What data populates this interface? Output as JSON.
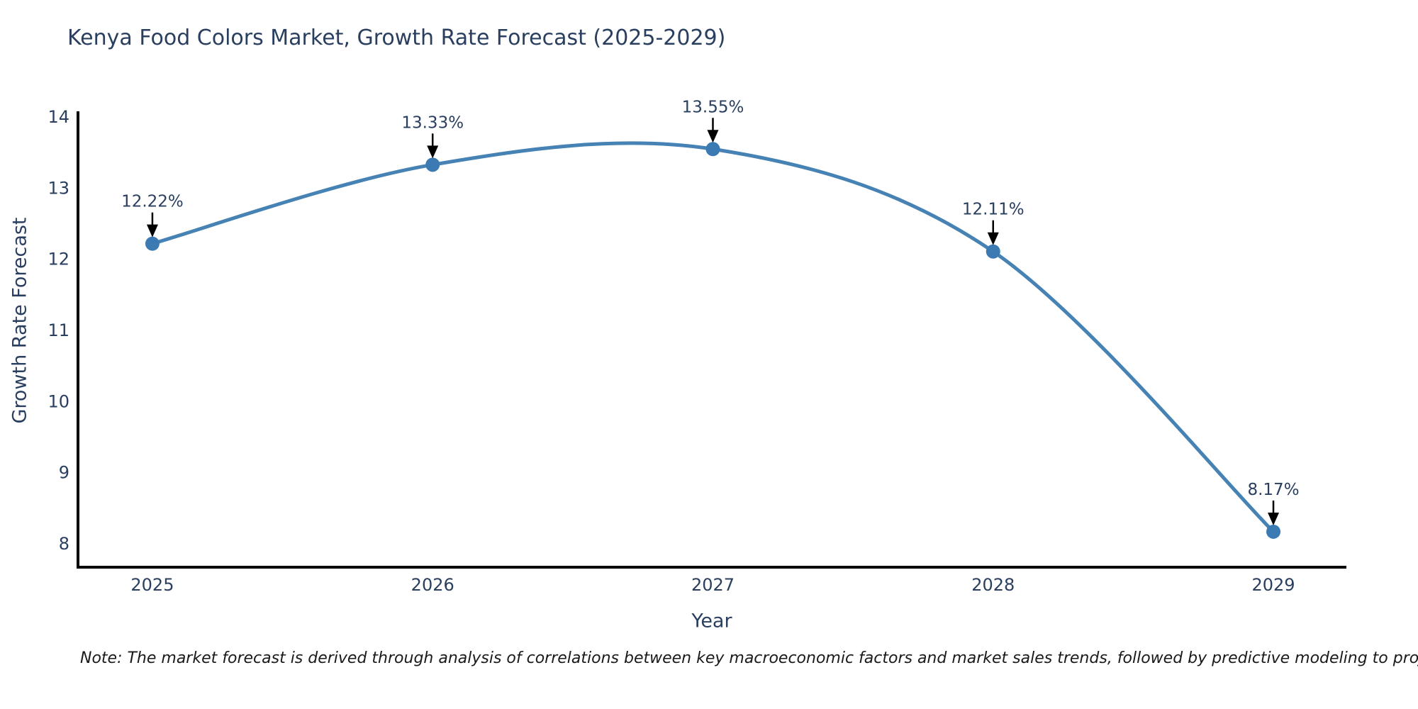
{
  "title": "Kenya Food Colors Market, Growth Rate Forecast (2025-2029)",
  "note": "Note: The market forecast is derived through analysis of correlations between key macroeconomic factors and market sales trends, followed by predictive modeling to project future sales.",
  "colors": {
    "line": "#4682b4",
    "marker": "#3c7ab4",
    "axis": "#000000",
    "text": "#2a3f5f",
    "annotation_arrow": "#000000",
    "background": "#ffffff"
  },
  "chart_data": {
    "type": "line",
    "title": "Kenya Food Colors Market, Growth Rate Forecast (2025-2029)",
    "xlabel": "Year",
    "ylabel": "Growth Rate Forecast",
    "x": [
      2025,
      2026,
      2027,
      2028,
      2029
    ],
    "y": [
      12.22,
      13.33,
      13.55,
      12.11,
      8.17
    ],
    "point_labels": [
      "12.22%",
      "13.33%",
      "13.55%",
      "12.11%",
      "8.17%"
    ],
    "xticks": [
      2025,
      2026,
      2027,
      2028,
      2029
    ],
    "yticks": [
      8,
      9,
      10,
      11,
      12,
      13,
      14
    ],
    "xlim": [
      2024.7345,
      2029.2605
    ],
    "ylim": [
      7.671,
      14.081
    ],
    "line_shape": "spline",
    "markers": true,
    "grid": false,
    "legend_position": "none"
  }
}
